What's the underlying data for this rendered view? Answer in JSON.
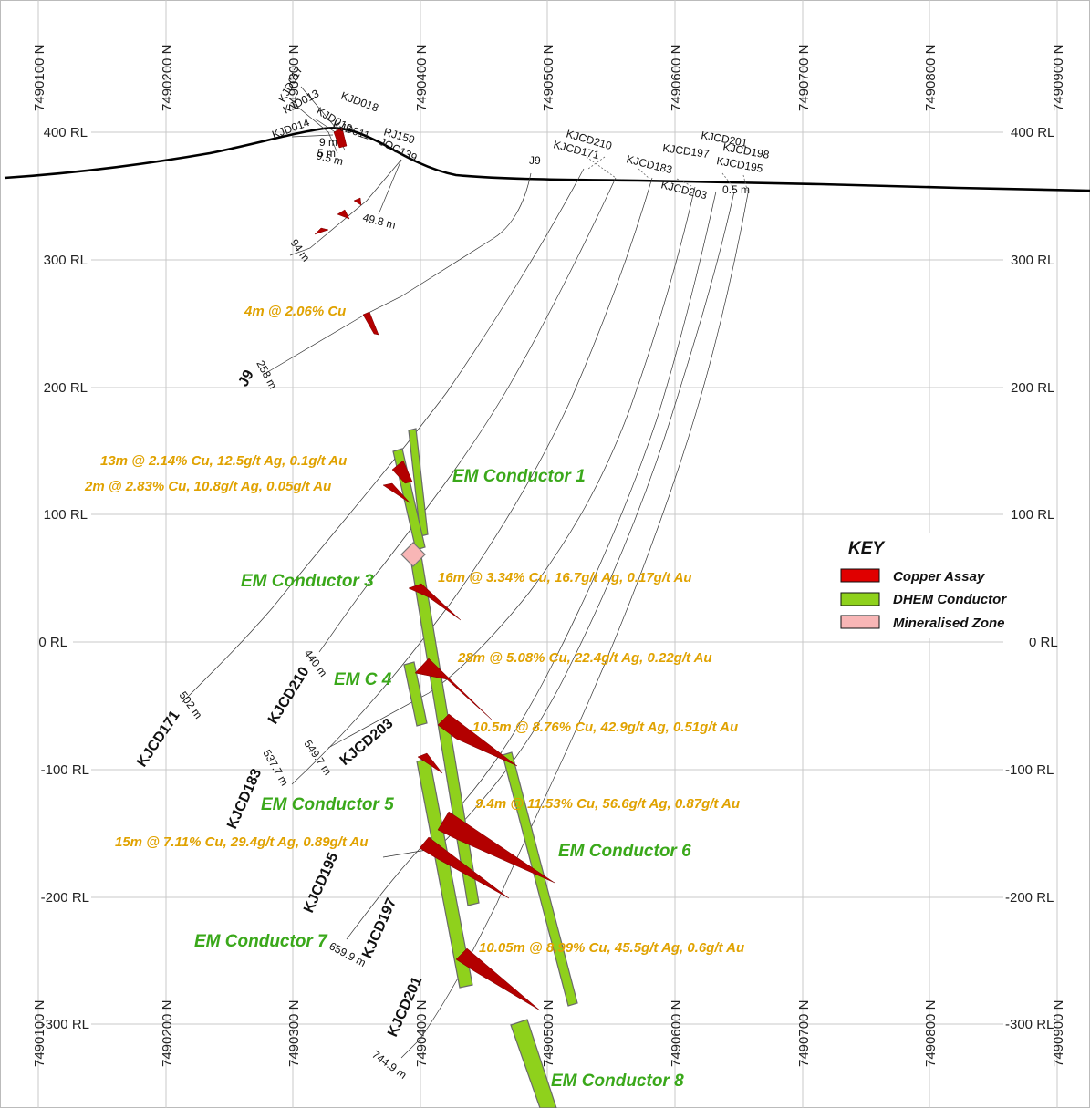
{
  "northings": [
    "7490100 N",
    "7490200 N",
    "7490300 N",
    "7490400 N",
    "7490500 N",
    "7490600 N",
    "7490700 N",
    "7490800 N",
    "7490900 N"
  ],
  "rl_labels": [
    "400 RL",
    "300 RL",
    "200 RL",
    "100 RL",
    "0 RL",
    "-100 RL",
    "-200 RL",
    "-300 RL"
  ],
  "hole_labels_top": {
    "kjd017": "KJD017",
    "kjd013": "KJD013",
    "kjd018": "KJD018",
    "kjd014": "KJD014",
    "kjd012": "KJD012",
    "kjd011": "KJD011",
    "rj159": "RJ159",
    "joc139": "JOC139",
    "j9": "J9",
    "kjcd210": "KJCD210",
    "kjcd171": "KJCD171",
    "kjcd183": "KJCD183",
    "kjcd197": "KJCD197",
    "kjcd203": "KJCD203",
    "kjcd201": "KJCD201",
    "kjcd198": "KJCD198",
    "kjcd195": "KJCD195"
  },
  "hole_tags": {
    "j9": "J9",
    "kjcd171": "KJCD171",
    "kjcd210": "KJCD210",
    "kjcd203": "KJCD203",
    "kjcd183": "KJCD183",
    "kjcd195": "KJCD195",
    "kjcd197": "KJCD197",
    "kjcd201": "KJCD201"
  },
  "depths": {
    "d_9m": "9 m",
    "d_5m": "5 m",
    "d_95m": "9.5 m",
    "d_498m": "49.8 m",
    "d_94m": "94 m",
    "d_05m": "0.5 m",
    "d_258m": "258 m",
    "d_502m": "502 m",
    "d_440m": "440 m",
    "d_5377m": "537.7 m",
    "d_5497m": "549.7 m",
    "d_6599m": "659.9 m",
    "d_7449m": "744.9 m"
  },
  "assays": {
    "a1": "4m @ 2.06% Cu",
    "a2": "13m @ 2.14% Cu, 12.5g/t Ag, 0.1g/t Au",
    "a3": "2m @ 2.83% Cu, 10.8g/t Ag, 0.05g/t Au",
    "a4": "16m @ 3.34% Cu, 16.7g/t Ag, 0.17g/t Au",
    "a5": "28m @  5.08% Cu, 22.4g/t Ag, 0.22g/t Au",
    "a6": "10.5m @ 8.76% Cu, 42.9g/t Ag, 0.51g/t Au",
    "a7": "9.4m @ 11.53% Cu, 56.6g/t Ag, 0.87g/t Au",
    "a8": "15m @  7.11% Cu, 29.4g/t Ag, 0.89g/t Au",
    "a9": "10.05m @ 8.99% Cu, 45.5g/t Ag, 0.6g/t Au"
  },
  "conductors": {
    "c1": "EM Conductor 1",
    "c3": "EM Conductor 3",
    "c4": "EM C 4",
    "c5": "EM Conductor 5",
    "c6": "EM Conductor 6",
    "c7": "EM Conductor 7",
    "c8": "EM Conductor 8"
  },
  "key": {
    "title": "KEY",
    "copper": "Copper Assay",
    "dhem": "DHEM Conductor",
    "mineralised": "Mineralised Zone"
  },
  "colors": {
    "copper": "#c00000",
    "conductor": "#8fd11c",
    "mineralised": "#f8b6b6",
    "assay_text": "#e0a200",
    "conductor_text": "#3aa81a"
  }
}
